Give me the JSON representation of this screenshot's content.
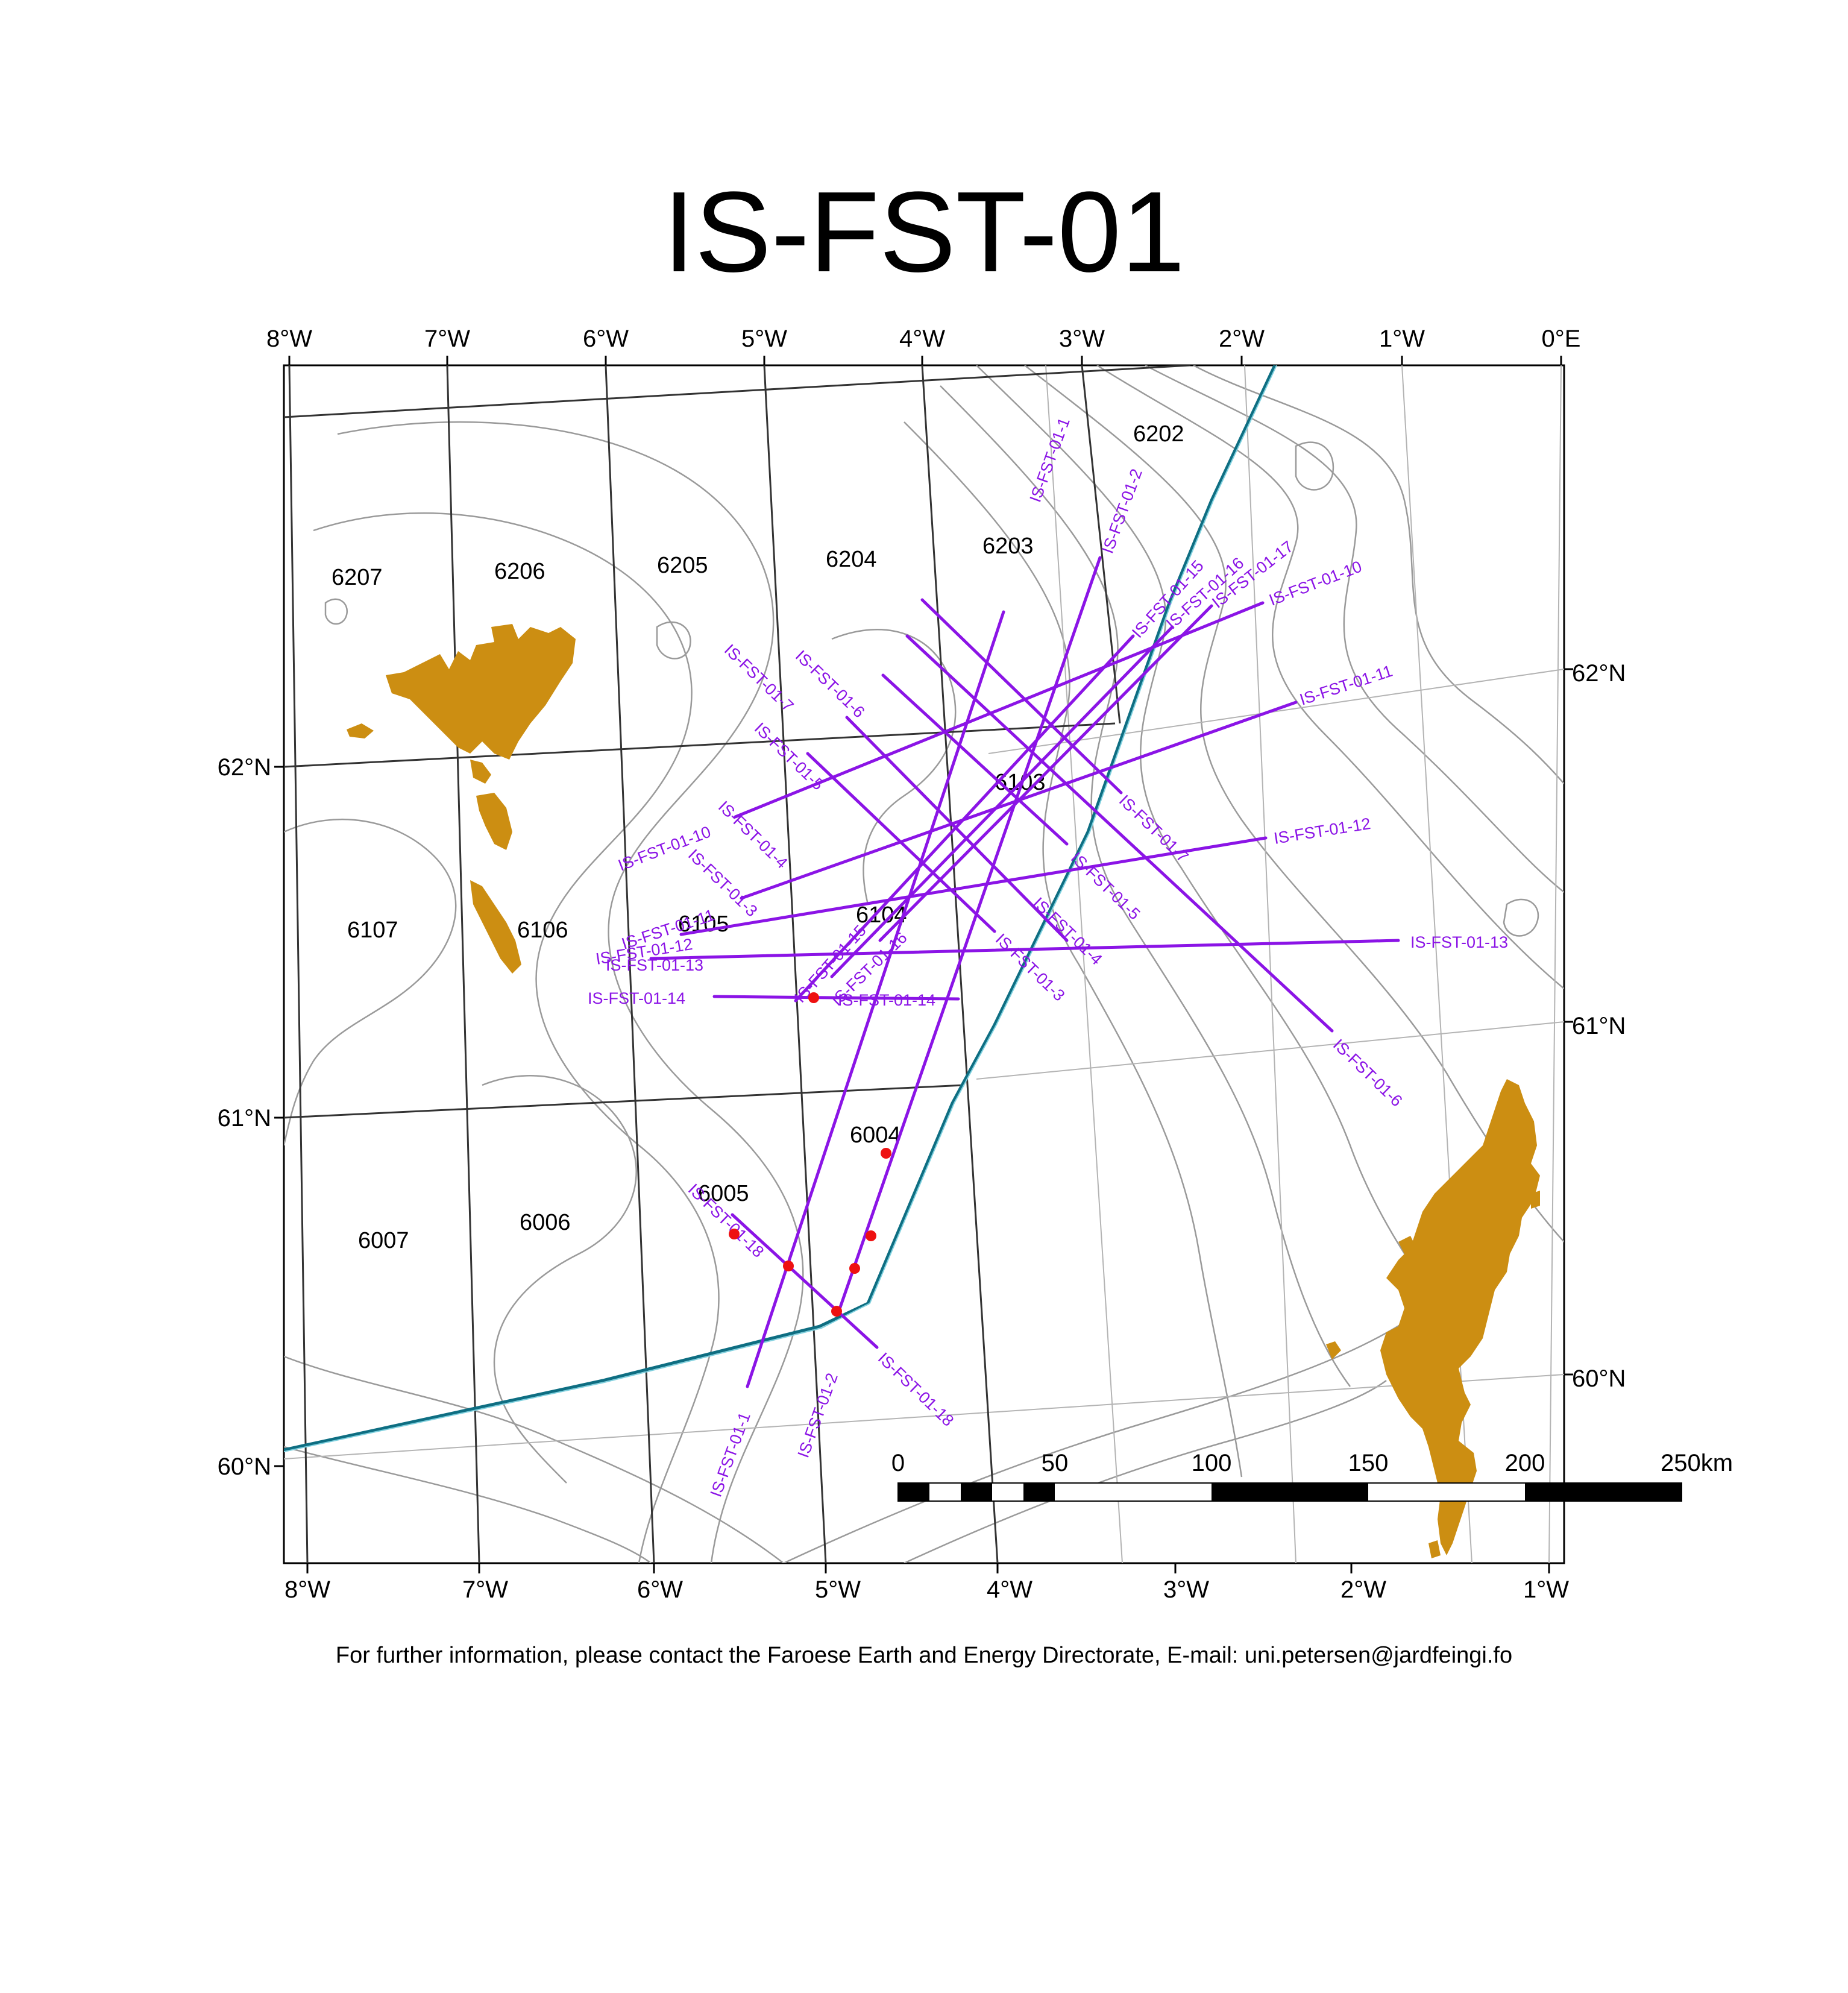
{
  "title": "IS-FST-01",
  "footer": "For further information, please contact the Faroese Earth and Energy Directorate, E-mail: uni.petersen@jardfeingi.fo",
  "top_lon_labels": [
    "8°W",
    "7°W",
    "6°W",
    "5°W",
    "4°W",
    "3°W",
    "2°W",
    "1°W",
    "0°E"
  ],
  "bottom_lon_labels": [
    "8°W",
    "7°W",
    "6°W",
    "5°W",
    "4°W",
    "3°W",
    "2°W",
    "1°W"
  ],
  "left_lat_labels": [
    "62°N",
    "61°N",
    "60°N"
  ],
  "right_lat_labels": [
    "62°N",
    "61°N",
    "60°N"
  ],
  "blocks": [
    {
      "id": "b6202",
      "label": "6202"
    },
    {
      "id": "b6203",
      "label": "6203"
    },
    {
      "id": "b6204",
      "label": "6204"
    },
    {
      "id": "b6205",
      "label": "6205"
    },
    {
      "id": "b6206",
      "label": "6206"
    },
    {
      "id": "b6207",
      "label": "6207"
    },
    {
      "id": "b6103",
      "label": "6103"
    },
    {
      "id": "b6104",
      "label": "6104"
    },
    {
      "id": "b6105",
      "label": "6105"
    },
    {
      "id": "b6106",
      "label": "6106"
    },
    {
      "id": "b6107",
      "label": "6107"
    },
    {
      "id": "b6004",
      "label": "6004"
    },
    {
      "id": "b6005",
      "label": "6005"
    },
    {
      "id": "b6006",
      "label": "6006"
    },
    {
      "id": "b6007",
      "label": "6007"
    }
  ],
  "seismic_lines": [
    "IS-FST-01-1",
    "IS-FST-01-2",
    "IS-FST-01-3",
    "IS-FST-01-4",
    "IS-FST-01-5",
    "IS-FST-01-6",
    "IS-FST-01-7",
    "IS-FST-01-10",
    "IS-FST-01-11",
    "IS-FST-01-12",
    "IS-FST-01-13",
    "IS-FST-01-14",
    "IS-FST-01-15",
    "IS-FST-01-16",
    "IS-FST-01-17",
    "IS-FST-01-18"
  ],
  "scale_bar": {
    "labels": [
      "0",
      "50",
      "100",
      "150",
      "200",
      "250"
    ],
    "unit": "km"
  },
  "colors": {
    "seismic": "#8b14e6",
    "land": "#cc8e12",
    "wells": "#ee1111",
    "boundary": "#0e6e82",
    "bathymetry": "#9a9a9a",
    "grid": "#b4b4b4"
  }
}
